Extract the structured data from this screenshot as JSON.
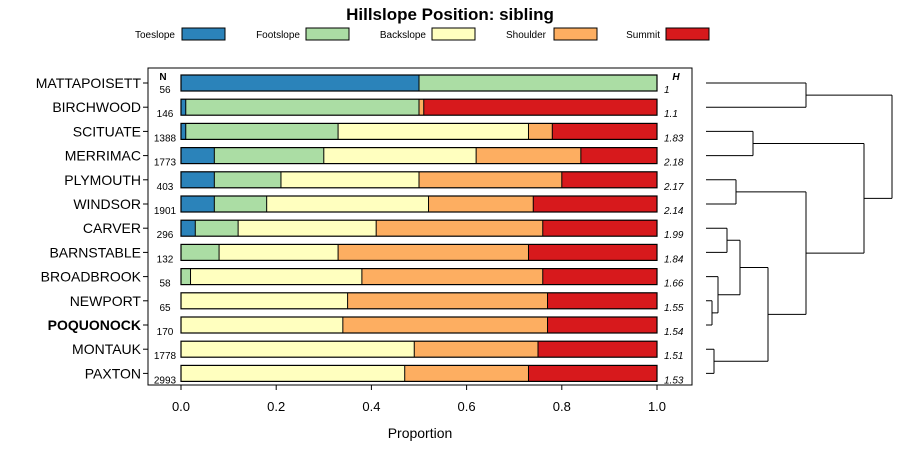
{
  "chart_data": {
    "type": "bar",
    "orientation": "horizontal",
    "stacked": true,
    "title": "Hillslope Position: sibling",
    "xlabel": "Proportion",
    "ylabel": "",
    "xlim": [
      0,
      1
    ],
    "xticks": [
      "0.0",
      "0.2",
      "0.4",
      "0.6",
      "0.8",
      "1.0"
    ],
    "grid": false,
    "legend_position": "top",
    "n_header": "N",
    "h_header": "H",
    "highlight": "POQUONOCK",
    "categories": [
      "MATTAPOISETT",
      "BIRCHWOOD",
      "SCITUATE",
      "MERRIMAC",
      "PLYMOUTH",
      "WINDSOR",
      "CARVER",
      "BARNSTABLE",
      "BROADBROOK",
      "NEWPORT",
      "POQUONOCK",
      "MONTAUK",
      "PAXTON"
    ],
    "n": [
      "56",
      "146",
      "1388",
      "1773",
      "403",
      "1901",
      "296",
      "132",
      "58",
      "65",
      "170",
      "1778",
      "2993"
    ],
    "h": [
      "1",
      "1.1",
      "1.83",
      "2.18",
      "2.17",
      "2.14",
      "1.99",
      "1.84",
      "1.66",
      "1.55",
      "1.54",
      "1.51",
      "1.53"
    ],
    "series": [
      {
        "name": "Toeslope",
        "color": "#2b83ba",
        "values": [
          0.5,
          0.01,
          0.01,
          0.07,
          0.07,
          0.07,
          0.03,
          0.0,
          0.0,
          0.0,
          0.0,
          0.0,
          0.0
        ]
      },
      {
        "name": "Footslope",
        "color": "#abdda4",
        "values": [
          0.5,
          0.49,
          0.32,
          0.23,
          0.14,
          0.11,
          0.09,
          0.08,
          0.02,
          0.0,
          0.0,
          0.0,
          0.0
        ]
      },
      {
        "name": "Backslope",
        "color": "#ffffbf",
        "values": [
          0.0,
          0.0,
          0.4,
          0.32,
          0.29,
          0.34,
          0.29,
          0.25,
          0.36,
          0.35,
          0.34,
          0.49,
          0.47
        ]
      },
      {
        "name": "Shoulder",
        "color": "#fdae61",
        "values": [
          0.0,
          0.01,
          0.05,
          0.22,
          0.3,
          0.22,
          0.35,
          0.4,
          0.38,
          0.42,
          0.43,
          0.26,
          0.26
        ]
      },
      {
        "name": "Summit",
        "color": "#d7191c",
        "values": [
          0.0,
          0.49,
          0.22,
          0.16,
          0.2,
          0.26,
          0.24,
          0.27,
          0.24,
          0.23,
          0.23,
          0.25,
          0.27
        ]
      }
    ]
  }
}
